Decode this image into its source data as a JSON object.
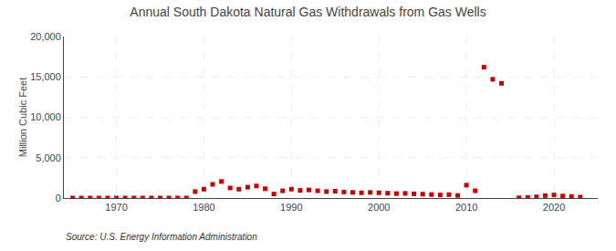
{
  "chart_data": {
    "type": "scatter",
    "title": "Annual South Dakota Natural Gas Withdrawals from Gas Wells",
    "ylabel": "Million Cubic Feet",
    "annotations": [
      "Source: U.S. Energy Information Administration"
    ],
    "color": "#cc0000",
    "marker": "square",
    "grid": true,
    "xlim": [
      1964,
      2025
    ],
    "xticks": [
      1970,
      1980,
      1990,
      2000,
      2010,
      2020
    ],
    "ylim": [
      0,
      20000
    ],
    "yticks": [
      0,
      {
        "value": 5000,
        "label": "5,000"
      },
      {
        "value": 10000,
        "label": "10,000"
      },
      {
        "value": 15000,
        "label": "15,000"
      },
      {
        "value": 20000,
        "label": "20,000"
      }
    ],
    "x": [
      1965,
      1966,
      1967,
      1968,
      1969,
      1970,
      1971,
      1972,
      1973,
      1974,
      1975,
      1976,
      1977,
      1978,
      1979,
      1980,
      1981,
      1982,
      1983,
      1984,
      1985,
      1986,
      1987,
      1988,
      1989,
      1990,
      1991,
      1992,
      1993,
      1994,
      1995,
      1996,
      1997,
      1998,
      1999,
      2000,
      2001,
      2002,
      2003,
      2004,
      2005,
      2006,
      2007,
      2008,
      2009,
      2010,
      2011,
      2012,
      2013,
      2014,
      2016,
      2017,
      2018,
      2019,
      2020,
      2021,
      2022,
      2023
    ],
    "values": [
      5,
      5,
      8,
      7,
      6,
      8,
      7,
      9,
      10,
      9,
      8,
      9,
      10,
      12,
      800,
      1100,
      1700,
      2050,
      1250,
      1100,
      1350,
      1500,
      1150,
      500,
      900,
      1100,
      950,
      1000,
      900,
      800,
      850,
      750,
      700,
      650,
      700,
      650,
      600,
      550,
      580,
      520,
      480,
      430,
      380,
      420,
      320,
      1600,
      900,
      16200,
      14700,
      14200,
      30,
      80,
      150,
      300,
      380,
      250,
      200,
      120
    ]
  }
}
